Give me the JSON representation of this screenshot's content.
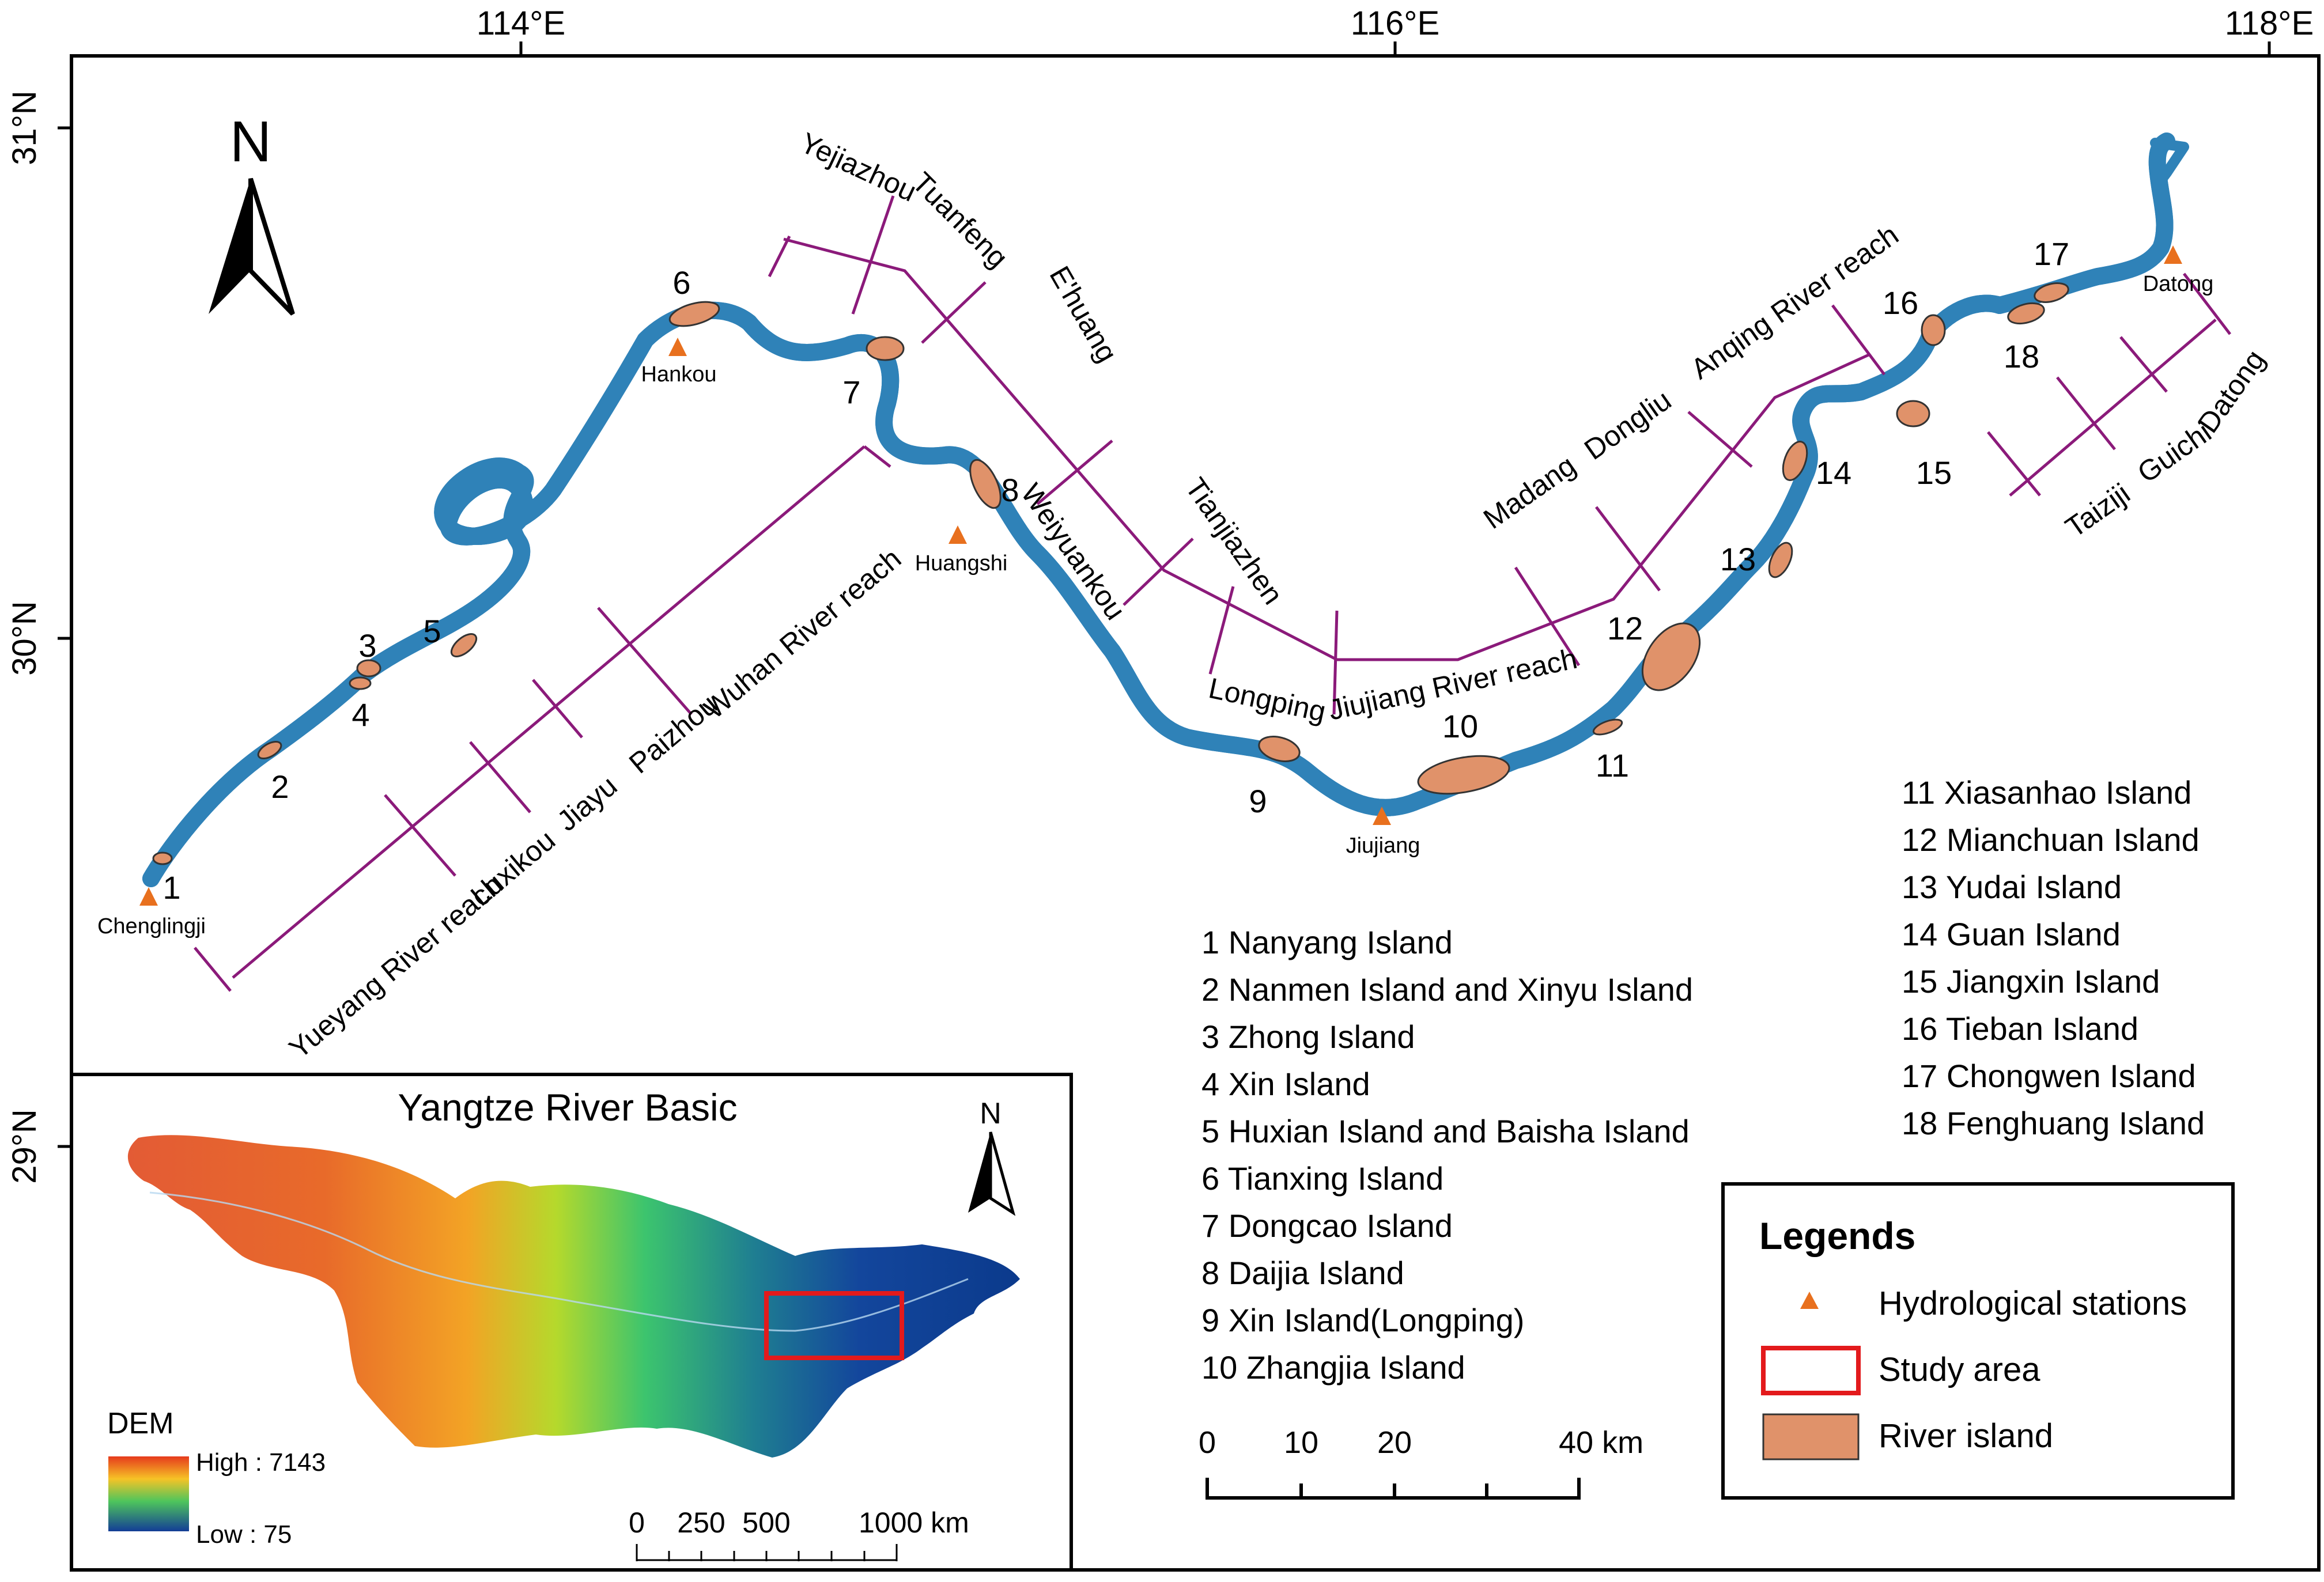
{
  "coords": {
    "lon_labels": [
      "114°E",
      "116°E",
      "118°E"
    ],
    "lat_labels": [
      "31°N",
      "30°N",
      "29°N"
    ]
  },
  "north_arrow": {
    "letter": "N"
  },
  "stations": [
    {
      "name": "Chenglingji"
    },
    {
      "name": "Hankou"
    },
    {
      "name": "Huangshi"
    },
    {
      "name": "Jiujiang"
    },
    {
      "name": "Datong"
    }
  ],
  "island_numbers": [
    "1",
    "2",
    "3",
    "4",
    "5",
    "6",
    "7",
    "8",
    "9",
    "10",
    "11",
    "12",
    "13",
    "14",
    "15",
    "16",
    "17",
    "18"
  ],
  "reaches": {
    "yueyang": "Yueyang River reach",
    "luxikou": "Luxikou",
    "jiayu": "Jiayu",
    "paizhou": "Paizhou",
    "wuhan": "Wuhan River reach",
    "yejiazhou": "Yejiazhou",
    "tuanfeng": "Tuanfeng",
    "ehuang": "E'huang",
    "weiyuankou": "Weiyuankou",
    "tianjiazhen": "Tianjiazhen",
    "longping": "Longping",
    "jiujiang": "Jiujiang River reach",
    "madang": "Madang",
    "dongliu": "Dongliu",
    "anqing": "Anqing River reach",
    "taiziji": "Taiziji",
    "guichi": "Guichi",
    "datong": "Datong"
  },
  "island_list_left": [
    "1 Nanyang Island",
    "2 Nanmen Island and Xinyu Island",
    "3 Zhong Island",
    "4 Xin Island",
    "5 Huxian Island  and Baisha Island",
    "6 Tianxing Island",
    "7 Dongcao Island",
    "8 Daijia Island",
    "9 Xin Island(Longping)",
    "10 Zhangjia Island"
  ],
  "island_list_right": [
    "11 Xiasanhao Island",
    "12 Mianchuan Island",
    "13 Yudai Island",
    "14 Guan Island",
    "15 Jiangxin Island",
    "16 Tieban Island",
    "17 Chongwen Island",
    "18 Fenghuang Island"
  ],
  "scale_main": {
    "labels": [
      "0",
      "10",
      "20",
      "40 km"
    ]
  },
  "legend": {
    "title": "Legends",
    "items": [
      {
        "label": "Hydrological stations",
        "color": "#e8701e"
      },
      {
        "label": "Study area",
        "color": "#e31a1c"
      },
      {
        "label": "River island",
        "color": "#e0926a"
      }
    ]
  },
  "inset": {
    "title": "Yangtze River Basic",
    "north": "N",
    "dem_title": "DEM",
    "dem_high": "High : 7143",
    "dem_low": "Low : 75",
    "scale_labels": [
      "0",
      "250",
      "500",
      "1000 km"
    ]
  },
  "colors": {
    "river_fill": "#a9d8f0",
    "river_edge": "#3b8ec2",
    "reach_line": "#8b1a7a",
    "island": "#e0926a",
    "station": "#e8701e"
  }
}
